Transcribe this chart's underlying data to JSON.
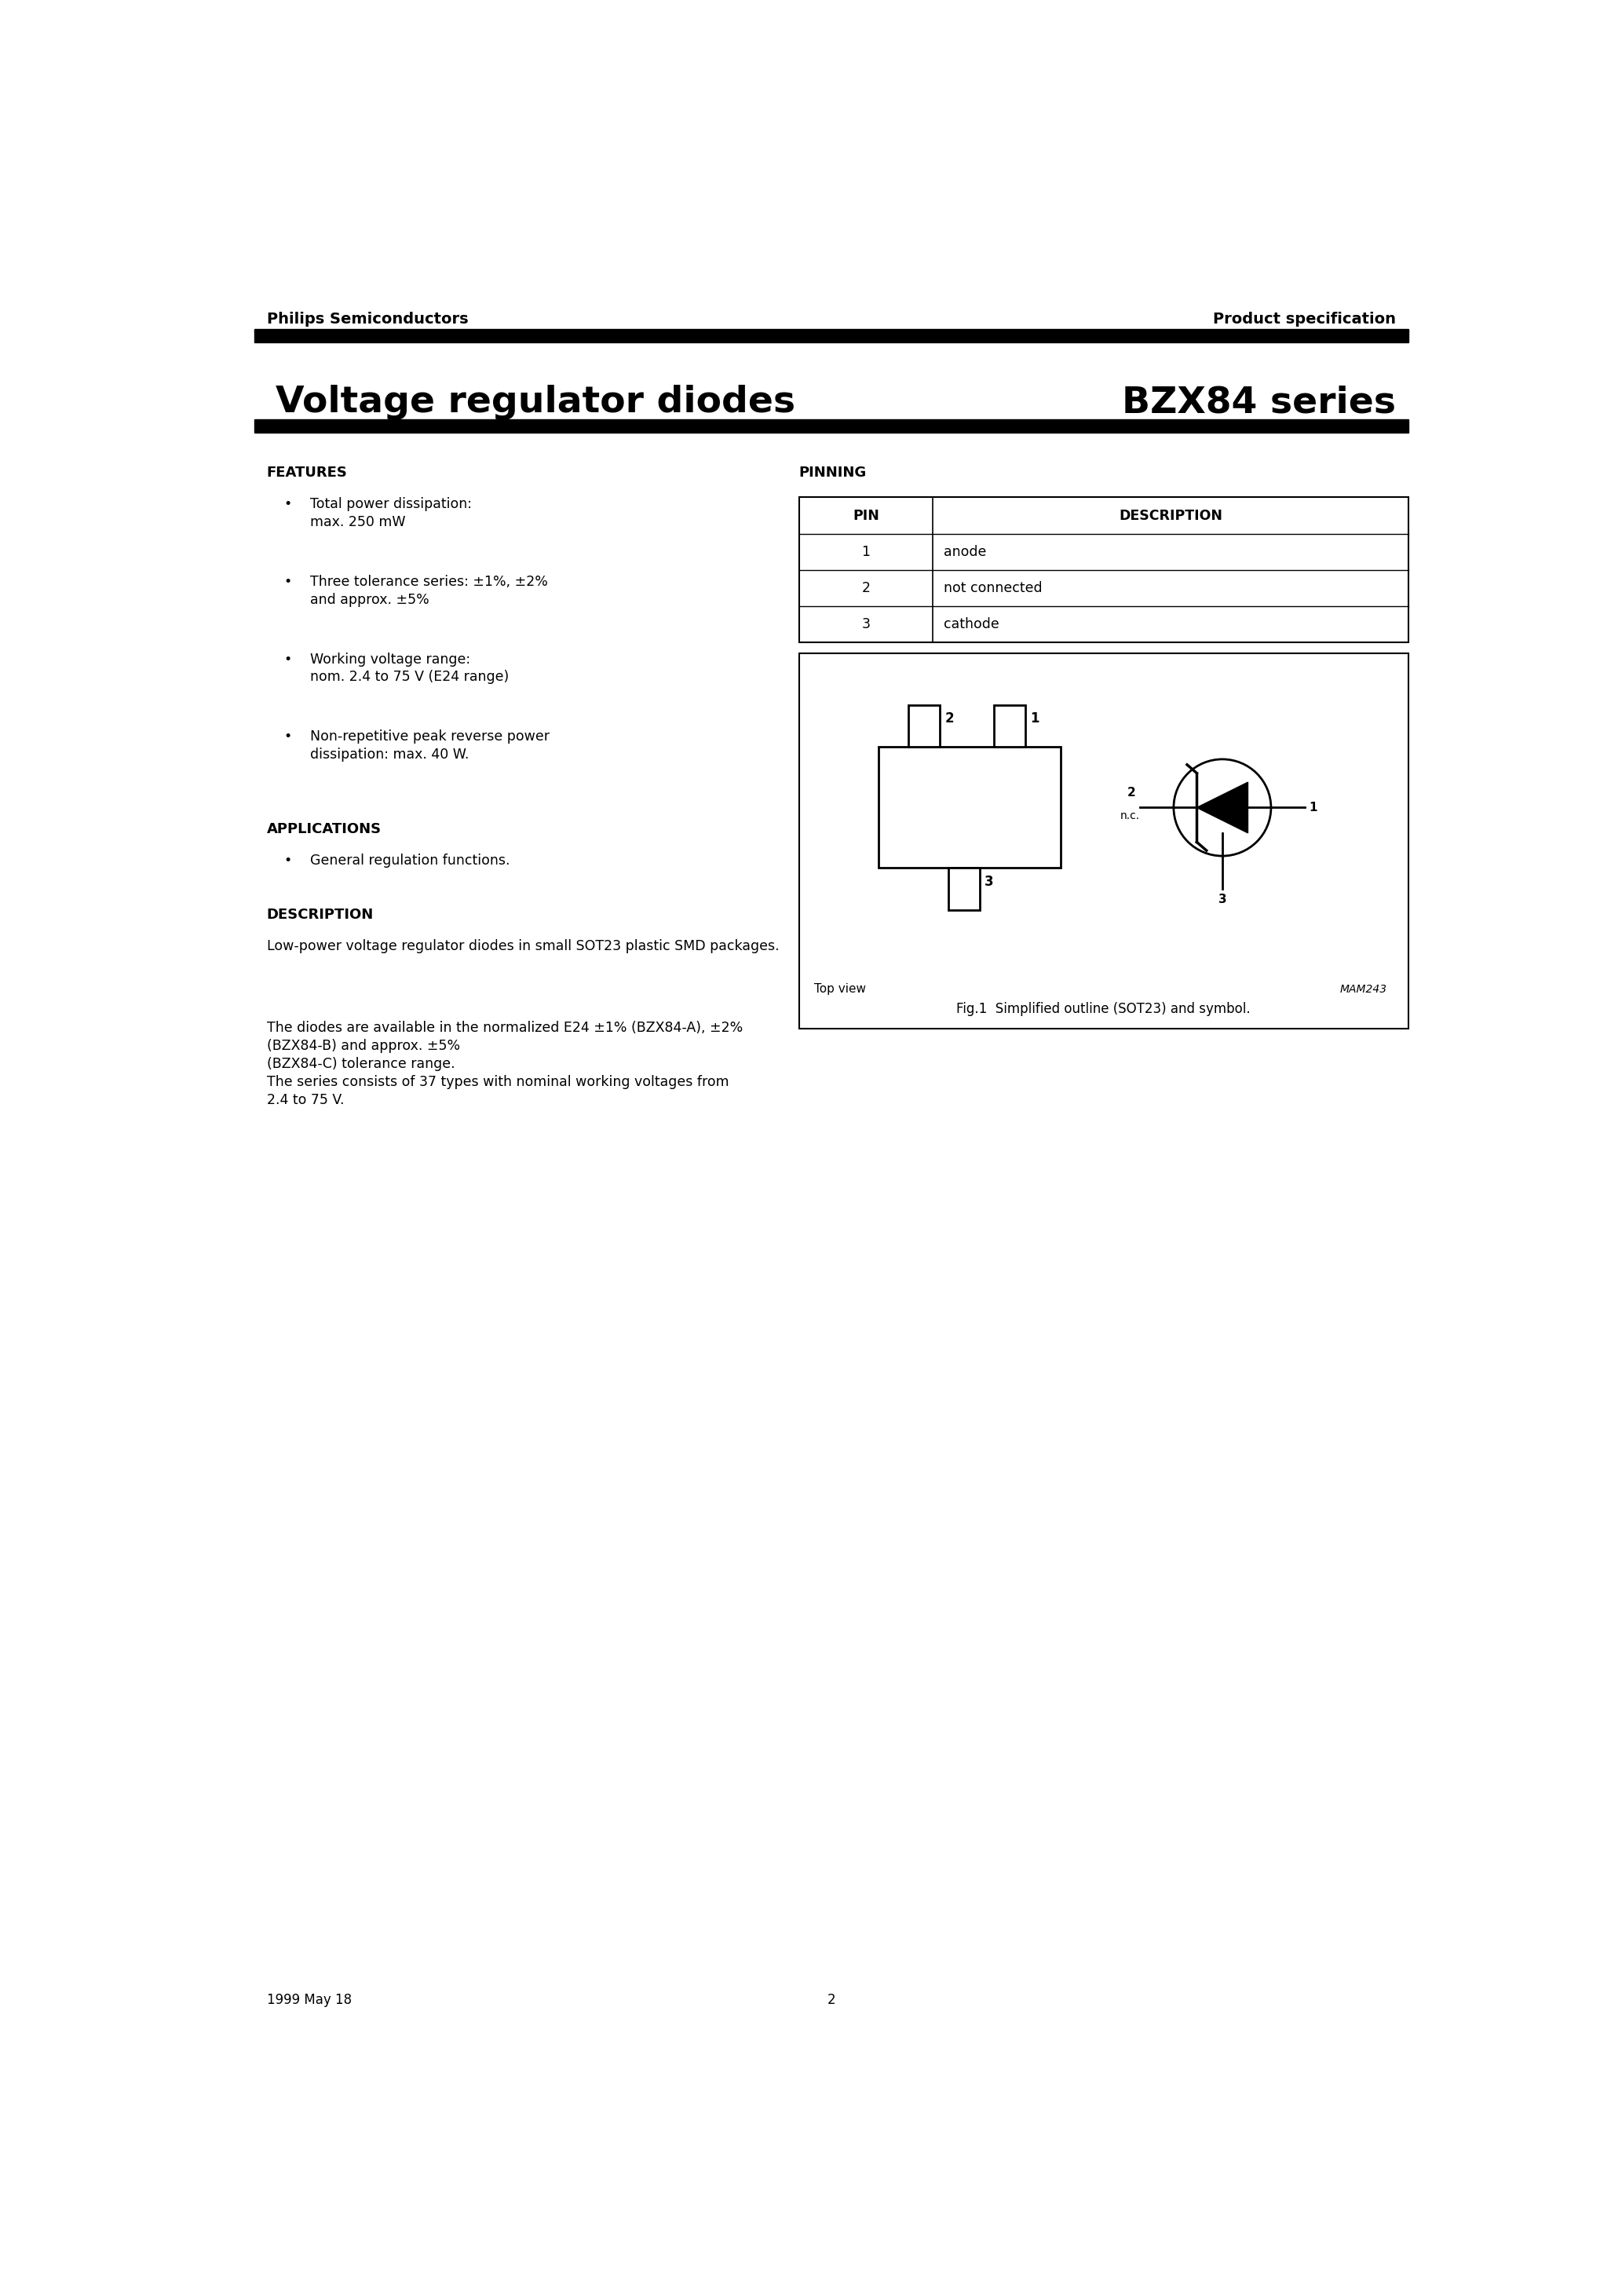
{
  "page_title_left": "Voltage regulator diodes",
  "page_title_right": "BZX84 series",
  "header_left": "Philips Semiconductors",
  "header_right": "Product specification",
  "footer_left": "1999 May 18",
  "footer_center": "2",
  "features_title": "FEATURES",
  "features_items": [
    "Total power dissipation:\nmax. 250 mW",
    "Three tolerance series: ±1%, ±2%\nand approx. ±5%",
    "Working voltage range:\nnom. 2.4 to 75 V (E24 range)",
    "Non-repetitive peak reverse power\ndissipation: max. 40 W."
  ],
  "applications_title": "APPLICATIONS",
  "applications_items": [
    "General regulation functions."
  ],
  "description_title": "DESCRIPTION",
  "description_para1": "Low-power voltage regulator diodes in small SOT23 plastic SMD packages.",
  "description_para2": "The diodes are available in the normalized E24 ±1% (BZX84-A), ±2%\n(BZX84-B) and approx. ±5%\n(BZX84-C) tolerance range.\nThe series consists of 37 types with nominal working voltages from\n2.4 to 75 V.",
  "pinning_title": "PINNING",
  "pin_table_headers": [
    "PIN",
    "DESCRIPTION"
  ],
  "pin_table_rows": [
    [
      "1",
      "anode"
    ],
    [
      "2",
      "not connected"
    ],
    [
      "3",
      "cathode"
    ]
  ],
  "fig_caption": "Fig.1  Simplified outline (SOT23) and symbol.",
  "mam_label": "MAM243",
  "top_view_label": "Top view",
  "background_color": "#ffffff",
  "text_color": "#000000",
  "bar_color": "#000000"
}
